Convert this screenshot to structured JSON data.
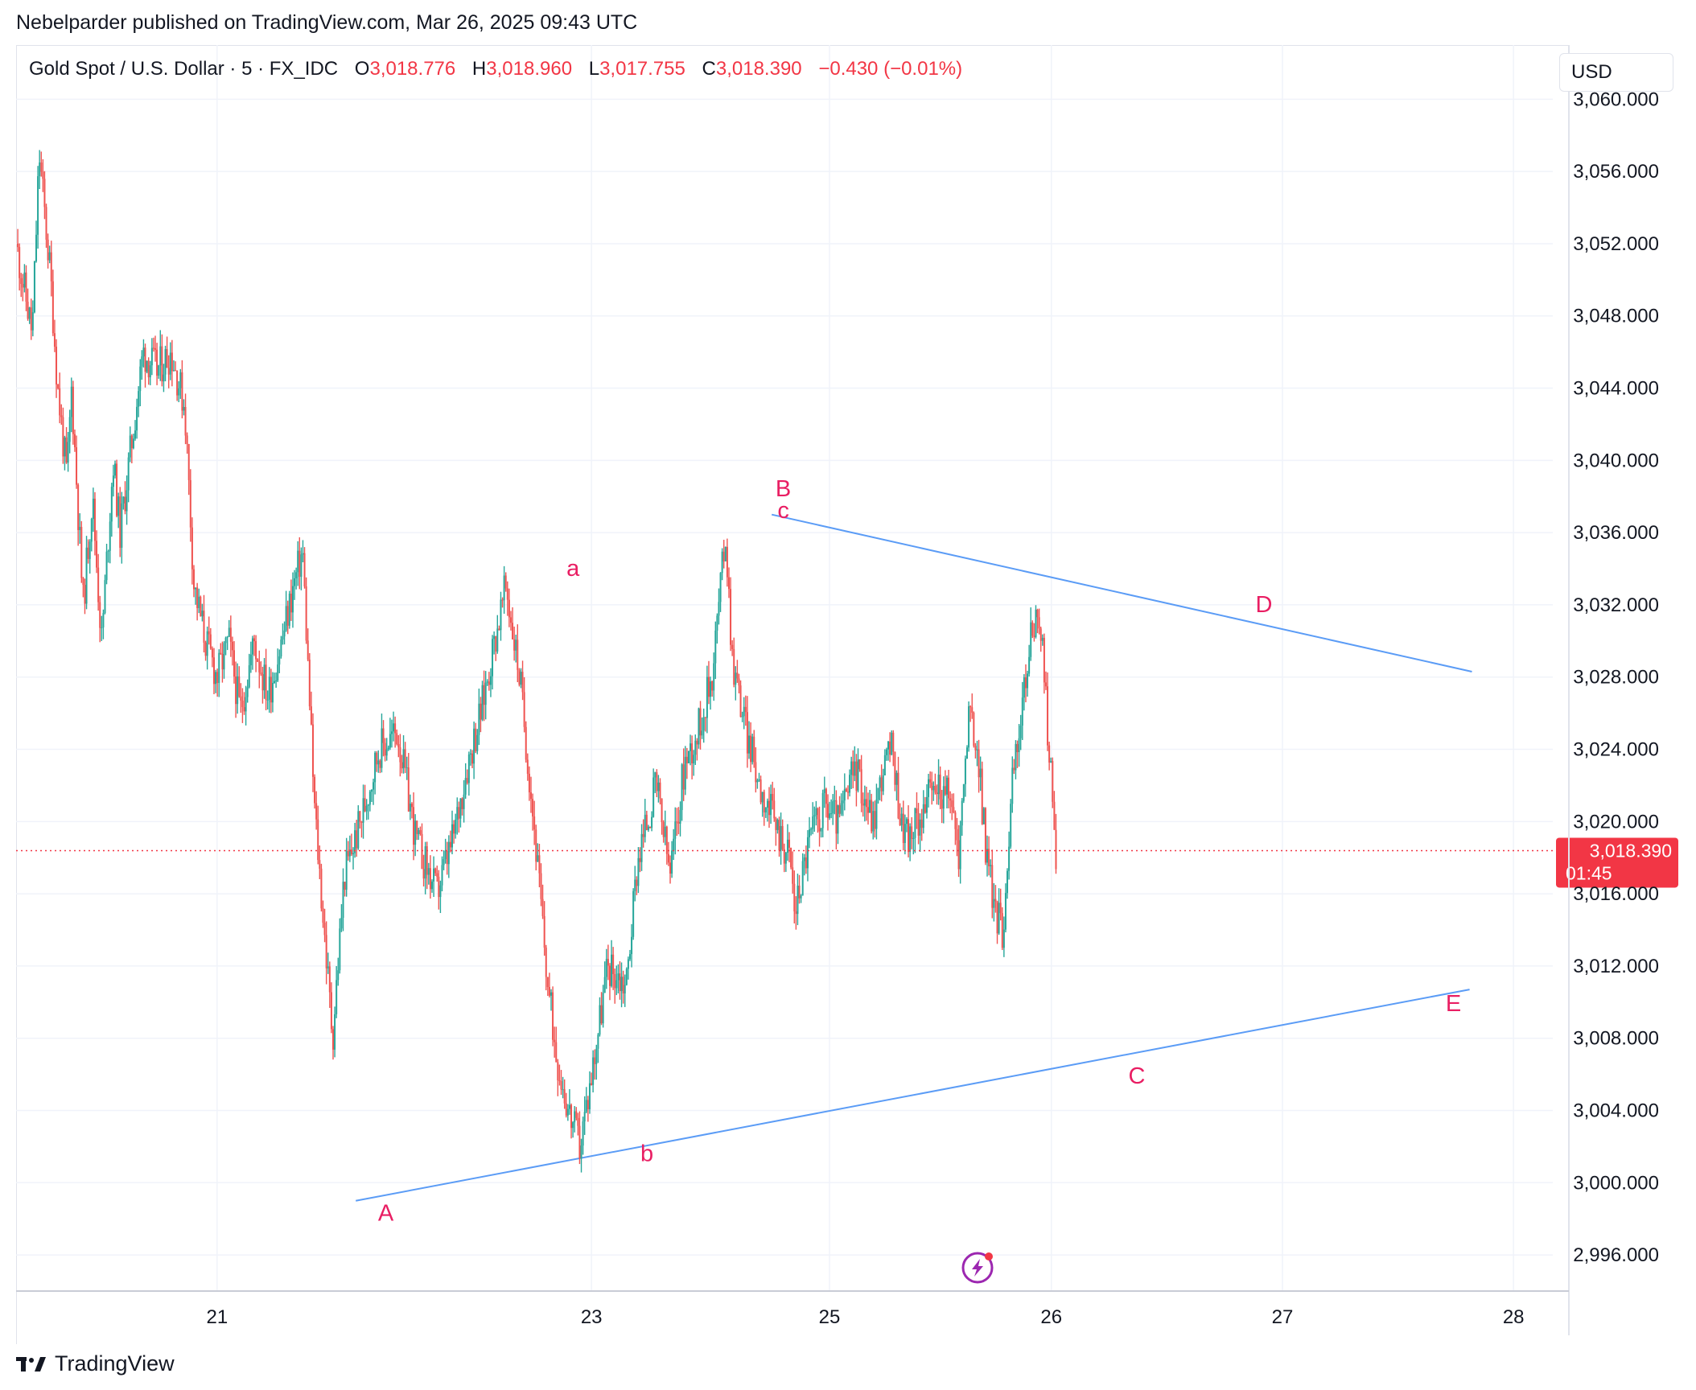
{
  "header": {
    "publish_line": "Nebelparder published on TradingView.com, Mar 26, 2025 09:43 UTC"
  },
  "legend": {
    "symbol": "Gold Spot / U.S. Dollar · 5 · FX_IDC",
    "open_label": "O",
    "open": "3,018.776",
    "high_label": "H",
    "high": "3,018.960",
    "low_label": "L",
    "low": "3,017.755",
    "close_label": "C",
    "close": "3,018.390",
    "change": "−0.430 (−0.01%)"
  },
  "price_scale": {
    "currency_button": "USD"
  },
  "last_price": {
    "price": "3,018.390",
    "countdown": "01:45"
  },
  "brand": {
    "name": "TradingView"
  },
  "colors": {
    "up": "#26a69a",
    "down": "#ef5350",
    "trendline": "#5b9cf6",
    "wave_label": "#e91e63",
    "last_price": "#f23645",
    "grid": "#f0f3fa",
    "replay_icon": "#9c27b0"
  },
  "icons": [
    "tradingview-logo-icon",
    "replay-lightning-icon"
  ],
  "chart_data": {
    "type": "candlestick",
    "symbol": "Gold Spot / U.S. Dollar",
    "interval": "5",
    "source": "FX_IDC",
    "y_axis": {
      "ticks": [
        3060,
        3056,
        3052,
        3048,
        3044,
        3040,
        3036,
        3032,
        3028,
        3024,
        3020,
        3016,
        3012,
        3008,
        3004,
        3000,
        2996
      ],
      "tick_labels": [
        "3,060.000",
        "3,056.000",
        "3,052.000",
        "3,048.000",
        "3,044.000",
        "3,040.000",
        "3,036.000",
        "3,032.000",
        "3,028.000",
        "3,024.000",
        "3,020.000",
        "3,016.000",
        "3,012.000",
        "3,008.000",
        "3,004.000",
        "3,000.000",
        "2,996.000"
      ],
      "range": [
        2994,
        3063
      ]
    },
    "x_axis": {
      "ticks": [
        {
          "label": "21",
          "x": 21
        },
        {
          "label": "23",
          "x": 22.62
        },
        {
          "label": "25",
          "x": 23.65
        },
        {
          "label": "26",
          "x": 24.61
        },
        {
          "label": "27",
          "x": 25.61
        },
        {
          "label": "28",
          "x": 26.61
        }
      ],
      "range": [
        20.13,
        26.78
      ]
    },
    "price_path": [
      [
        20.13,
        3052.0
      ],
      [
        20.2,
        3047.0
      ],
      [
        20.23,
        3057.0
      ],
      [
        20.28,
        3050.0
      ],
      [
        20.31,
        3044.0
      ],
      [
        20.35,
        3039.0
      ],
      [
        20.37,
        3044.0
      ],
      [
        20.42,
        3032.0
      ],
      [
        20.46,
        3038.0
      ],
      [
        20.5,
        3030.0
      ],
      [
        20.55,
        3040.0
      ],
      [
        20.58,
        3036.0
      ],
      [
        20.62,
        3040.0
      ],
      [
        20.68,
        3046.0
      ],
      [
        20.74,
        3045.0
      ],
      [
        20.8,
        3046.0
      ],
      [
        20.86,
        3043.0
      ],
      [
        20.9,
        3033.0
      ],
      [
        20.95,
        3030.0
      ],
      [
        21.0,
        3028.0
      ],
      [
        21.05,
        3030.0
      ],
      [
        21.1,
        3026.0
      ],
      [
        21.16,
        3030.0
      ],
      [
        21.22,
        3027.0
      ],
      [
        21.28,
        3030.0
      ],
      [
        21.33,
        3033.0
      ],
      [
        21.37,
        3035.0
      ],
      [
        21.42,
        3021.0
      ],
      [
        21.5,
        3008.0
      ],
      [
        21.55,
        3017.0
      ],
      [
        21.62,
        3020.0
      ],
      [
        21.7,
        3024.0
      ],
      [
        21.78,
        3025.0
      ],
      [
        21.86,
        3019.0
      ],
      [
        21.95,
        3016.0
      ],
      [
        22.02,
        3019.0
      ],
      [
        22.08,
        3023.0
      ],
      [
        22.14,
        3026.0
      ],
      [
        22.2,
        3030.0
      ],
      [
        22.25,
        3033.0
      ],
      [
        22.31,
        3028.0
      ],
      [
        22.37,
        3020.0
      ],
      [
        22.43,
        3011.0
      ],
      [
        22.47,
        3007.0
      ],
      [
        22.52,
        3004.0
      ],
      [
        22.57,
        3002.0
      ],
      [
        22.62,
        3006.0
      ],
      [
        22.69,
        3012.0
      ],
      [
        22.77,
        3011.0
      ],
      [
        22.82,
        3018.0
      ],
      [
        22.9,
        3022.0
      ],
      [
        22.96,
        3017.0
      ],
      [
        23.02,
        3023.0
      ],
      [
        23.08,
        3025.0
      ],
      [
        23.14,
        3028.0
      ],
      [
        23.2,
        3036.0
      ],
      [
        23.23,
        3029.0
      ],
      [
        23.29,
        3025.0
      ],
      [
        23.35,
        3022.0
      ],
      [
        23.41,
        3020.0
      ],
      [
        23.48,
        3018.0
      ],
      [
        23.5,
        3015.0
      ],
      [
        23.56,
        3019.0
      ],
      [
        23.63,
        3021.0
      ],
      [
        23.69,
        3020.0
      ],
      [
        23.76,
        3023.0
      ],
      [
        23.84,
        3020.0
      ],
      [
        23.88,
        3023.0
      ],
      [
        23.92,
        3024.0
      ],
      [
        23.96,
        3020.0
      ],
      [
        24.0,
        3019.0
      ],
      [
        24.06,
        3021.0
      ],
      [
        24.12,
        3022.0
      ],
      [
        24.18,
        3021.0
      ],
      [
        24.21,
        3018.0
      ],
      [
        24.25,
        3026.0
      ],
      [
        24.29,
        3024.0
      ],
      [
        24.33,
        3018.0
      ],
      [
        24.37,
        3015.0
      ],
      [
        24.4,
        3014.0
      ],
      [
        24.44,
        3022.0
      ],
      [
        24.48,
        3026.0
      ],
      [
        24.52,
        3030.0
      ],
      [
        24.55,
        3032.0
      ],
      [
        24.58,
        3028.0
      ],
      [
        24.61,
        3022.0
      ],
      [
        24.63,
        3018.4
      ]
    ],
    "last_price": 3018.39,
    "trendlines": [
      {
        "name": "upper",
        "x1": 23.4,
        "y1": 3037.0,
        "x2": 26.43,
        "y2": 3028.3
      },
      {
        "name": "lower",
        "x1": 21.6,
        "y1": 2999.0,
        "x2": 26.42,
        "y2": 3010.7
      }
    ],
    "wave_labels": [
      {
        "text": "A",
        "x": 21.73,
        "y": 2997.9
      },
      {
        "text": "a",
        "x": 22.54,
        "y": 3033.6
      },
      {
        "text": "b",
        "x": 22.86,
        "y": 3001.2
      },
      {
        "text": "B",
        "x": 23.45,
        "y": 3038.0
      },
      {
        "text": "c",
        "x": 23.45,
        "y": 3036.8
      },
      {
        "text": "D",
        "x": 25.53,
        "y": 3031.6
      },
      {
        "text": "C",
        "x": 24.98,
        "y": 3005.5
      },
      {
        "text": "E",
        "x": 26.35,
        "y": 3009.5
      }
    ]
  }
}
